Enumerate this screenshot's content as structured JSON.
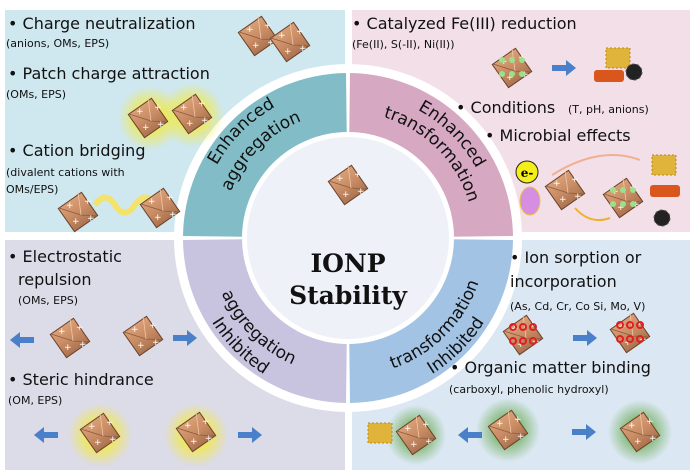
{
  "colors": {
    "tl_bg": "#cfe7ef",
    "tr_bg": "#f2dfe8",
    "bl_bg": "#dcdbe8",
    "br_bg": "#dbe7f2",
    "tl_ring": "#82bdc7",
    "tr_ring": "#d6a8c2",
    "bl_ring": "#c8c3de",
    "br_ring": "#a2c3e3",
    "core": "#eef1f8",
    "arrow": "#4a7fc9"
  },
  "center": {
    "line1": "IONP",
    "line2": "Stability"
  },
  "ring": {
    "tl": {
      "line1": "Enhanced",
      "line2": "aggregation"
    },
    "tr": {
      "line1": "Enhanced",
      "line2": "transformation"
    },
    "bl": {
      "line1": "Inhibited",
      "line2": "aggregation"
    },
    "br": {
      "line1": "Inhibited",
      "line2": "transformation"
    }
  },
  "quadrants": {
    "tl": {
      "items": [
        {
          "title": "• Charge neutralization",
          "detail": "(anions, OMs, EPS)"
        },
        {
          "title": "• Patch charge attraction",
          "detail": "(OMs, EPS)"
        },
        {
          "title": "• Cation bridging",
          "detail": "(divalent cations with",
          "detail2": "OMs/EPS)"
        }
      ]
    },
    "tr": {
      "items": [
        {
          "title": "• Catalyzed Fe(III) reduction",
          "detail": "(Fe(II), S(-II), Ni(II))"
        },
        {
          "title": "• Conditions",
          "detail": "(T, pH, anions)"
        },
        {
          "title": "• Microbial effects"
        }
      ],
      "electron": "e-"
    },
    "bl": {
      "items": [
        {
          "title": "• Electrostatic",
          "title2": "repulsion",
          "detail": "(OMs, EPS)"
        },
        {
          "title": "• Steric hindrance",
          "detail": "(OM, EPS)"
        }
      ]
    },
    "br": {
      "items": [
        {
          "title": "• Ion sorption or",
          "title2": "incorporation",
          "detail": "(As, Cd, Cr, Co Si, Mo, V)"
        },
        {
          "title": "• Organic matter binding",
          "detail": "(carboxyl, phenolic hydroxyl)"
        }
      ]
    }
  }
}
